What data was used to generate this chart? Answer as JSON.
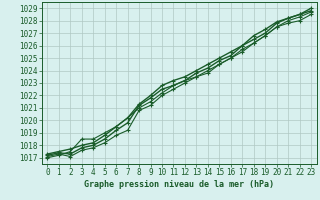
{
  "xlabel": "Graphe pression niveau de la mer (hPa)",
  "ylim": [
    1016.5,
    1029.5
  ],
  "xlim": [
    -0.5,
    23.5
  ],
  "yticks": [
    1017,
    1018,
    1019,
    1020,
    1021,
    1022,
    1023,
    1024,
    1025,
    1026,
    1027,
    1028,
    1029
  ],
  "xticks": [
    0,
    1,
    2,
    3,
    4,
    5,
    6,
    7,
    8,
    9,
    10,
    11,
    12,
    13,
    14,
    15,
    16,
    17,
    18,
    19,
    20,
    21,
    22,
    23
  ],
  "bg_color": "#d8f0ee",
  "grid_color": "#b0c8c4",
  "line_color": "#1a5c2a",
  "tick_color": "#1a5c2a",
  "marker": "+",
  "lines": [
    [
      1017.2,
      1017.4,
      1017.3,
      1017.8,
      1018.0,
      1018.5,
      1019.2,
      1019.8,
      1021.2,
      1021.8,
      1022.5,
      1022.8,
      1023.2,
      1023.8,
      1024.2,
      1024.8,
      1025.2,
      1026.0,
      1026.5,
      1027.0,
      1027.8,
      1028.2,
      1028.5,
      1028.8
    ],
    [
      1017.1,
      1017.3,
      1017.1,
      1017.6,
      1017.8,
      1018.2,
      1018.8,
      1019.2,
      1020.8,
      1021.2,
      1022.0,
      1022.5,
      1023.0,
      1023.5,
      1024.0,
      1024.5,
      1025.0,
      1025.7,
      1026.2,
      1026.8,
      1027.5,
      1028.0,
      1028.3,
      1028.7
    ],
    [
      1017.0,
      1017.2,
      1017.5,
      1018.5,
      1018.5,
      1019.0,
      1019.5,
      1020.2,
      1021.0,
      1021.5,
      1022.2,
      1022.8,
      1023.2,
      1023.5,
      1023.8,
      1024.5,
      1025.0,
      1025.5,
      1026.2,
      1026.8,
      1027.5,
      1027.8,
      1028.0,
      1028.5
    ],
    [
      1017.3,
      1017.5,
      1017.7,
      1018.0,
      1018.2,
      1018.8,
      1019.5,
      1020.2,
      1021.3,
      1022.0,
      1022.8,
      1023.2,
      1023.5,
      1024.0,
      1024.5,
      1025.0,
      1025.5,
      1026.0,
      1026.8,
      1027.3,
      1027.9,
      1028.2,
      1028.5,
      1029.0
    ]
  ],
  "figsize": [
    3.2,
    2.0
  ],
  "dpi": 100
}
